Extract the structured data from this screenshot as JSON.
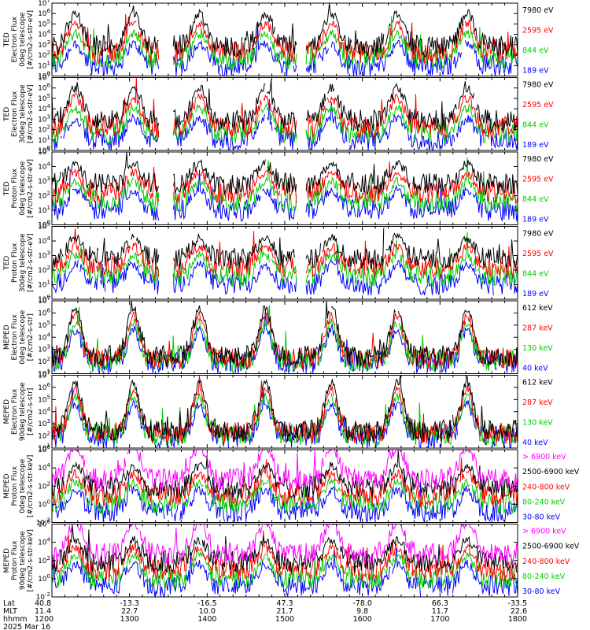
{
  "chart_data": {
    "type": "line",
    "title": "",
    "date": "2025 Mar 16",
    "x_axis": {
      "rows": [
        {
          "name": "Lat",
          "values": [
            "40.8",
            "-13.3",
            "-16.5",
            "47.3",
            "-78.0",
            "66.3",
            "-33.5"
          ]
        },
        {
          "name": "MLT",
          "values": [
            "11.4",
            "22.7",
            "10.0",
            "21.7",
            "9.8",
            "11.7",
            "22.6"
          ]
        },
        {
          "name": "hhmm",
          "values": [
            "1200",
            "1300",
            "1400",
            "1500",
            "1600",
            "1700",
            "1800"
          ]
        }
      ],
      "range_hours": [
        12,
        18
      ]
    },
    "panels": [
      {
        "id": "ted-electron-0deg",
        "ylabel": [
          "TED",
          "Electron Flux",
          "0deg telescope",
          "[#/cm2-s-str-eV]"
        ],
        "yscale": "log",
        "ylim_exp": [
          0,
          7
        ],
        "tick_labels": [
          "10^0",
          "10^1",
          "10^2",
          "10^3",
          "10^4",
          "10^5",
          "10^6",
          "10^7"
        ],
        "series": [
          {
            "name": "7980 eV",
            "color": "#000000"
          },
          {
            "name": "2595 eV",
            "color": "#ff0000"
          },
          {
            "name": "844 eV",
            "color": "#00cc00"
          },
          {
            "name": "189 eV",
            "color": "#0000ff"
          }
        ]
      },
      {
        "id": "ted-electron-30deg",
        "ylabel": [
          "TED",
          "Electron Flux",
          "30deg telescope",
          "[#/cm2-s-str-eV]"
        ],
        "yscale": "log",
        "ylim_exp": [
          0,
          7
        ],
        "tick_labels": [
          "10^0",
          "10^1",
          "10^2",
          "10^3",
          "10^4",
          "10^5",
          "10^6",
          "10^7"
        ],
        "series": [
          {
            "name": "7980 eV",
            "color": "#000000"
          },
          {
            "name": "2595 eV",
            "color": "#ff0000"
          },
          {
            "name": "844 eV",
            "color": "#00cc00"
          },
          {
            "name": "189 eV",
            "color": "#0000ff"
          }
        ]
      },
      {
        "id": "ted-proton-0deg",
        "ylabel": [
          "TED",
          "Proton Flux",
          "0deg telescope",
          "[#/cm2-s-str-eV]"
        ],
        "yscale": "log",
        "ylim_exp": [
          0,
          5
        ],
        "tick_labels": [
          "10^0",
          "10^1",
          "10^2",
          "10^3",
          "10^4",
          "10^5"
        ],
        "series": [
          {
            "name": "7980 eV",
            "color": "#000000"
          },
          {
            "name": "2595 eV",
            "color": "#ff0000"
          },
          {
            "name": "844 eV",
            "color": "#00cc00"
          },
          {
            "name": "189 eV",
            "color": "#0000ff"
          }
        ]
      },
      {
        "id": "ted-proton-30deg",
        "ylabel": [
          "TED",
          "Proton Flux",
          "30deg telescope",
          "[#/cm2-s-str-eV]"
        ],
        "yscale": "log",
        "ylim_exp": [
          0,
          5
        ],
        "tick_labels": [
          "10^0",
          "10^1",
          "10^2",
          "10^3",
          "10^4",
          "10^5"
        ],
        "series": [
          {
            "name": "7980 eV",
            "color": "#000000"
          },
          {
            "name": "2595 eV",
            "color": "#ff0000"
          },
          {
            "name": "844 eV",
            "color": "#00cc00"
          },
          {
            "name": "189 eV",
            "color": "#0000ff"
          }
        ]
      },
      {
        "id": "meped-electron-0deg",
        "ylabel": [
          "MEPED",
          "Electron Flux",
          "0deg telescope",
          "[#/cm2-s-str]"
        ],
        "yscale": "log",
        "ylim_exp": [
          1,
          7
        ],
        "tick_labels": [
          "10^1",
          "10^2",
          "10^3",
          "10^4",
          "10^5",
          "10^6",
          "10^7"
        ],
        "series": [
          {
            "name": "612 keV",
            "color": "#000000"
          },
          {
            "name": "287 keV",
            "color": "#ff0000"
          },
          {
            "name": "130 keV",
            "color": "#00cc00"
          },
          {
            "name": "40 keV",
            "color": "#0000ff"
          }
        ]
      },
      {
        "id": "meped-electron-90deg",
        "ylabel": [
          "MEPED",
          "Electron Flux",
          "90deg telescope",
          "[#/cm2-s-str]"
        ],
        "yscale": "log",
        "ylim_exp": [
          1,
          7
        ],
        "tick_labels": [
          "10^1",
          "10^2",
          "10^3",
          "10^4",
          "10^5",
          "10^6",
          "10^7"
        ],
        "series": [
          {
            "name": "612 keV",
            "color": "#000000"
          },
          {
            "name": "287 keV",
            "color": "#ff0000"
          },
          {
            "name": "130 keV",
            "color": "#00cc00"
          },
          {
            "name": "40 keV",
            "color": "#0000ff"
          }
        ]
      },
      {
        "id": "meped-proton-0deg",
        "ylabel": [
          "MEPED",
          "Proton Flux",
          "0deg telescope",
          "[#/cm2-s-str-keV]"
        ],
        "yscale": "log",
        "ylim_exp": [
          -2,
          6
        ],
        "tick_labels": [
          "10^-2",
          "10^0",
          "10^2",
          "10^4",
          "10^6"
        ],
        "series": [
          {
            "name": "> 6900 keV",
            "color": "#ff00ff"
          },
          {
            "name": "2500-6900 keV",
            "color": "#000000"
          },
          {
            "name": "240-800 keV",
            "color": "#ff0000"
          },
          {
            "name": "80-240 keV",
            "color": "#00cc00"
          },
          {
            "name": "30-80 keV",
            "color": "#0000ff"
          }
        ]
      },
      {
        "id": "meped-proton-90deg",
        "ylabel": [
          "MEPED",
          "Proton Flux",
          "90deg telescope",
          "[#/cm2-s-str-keV]"
        ],
        "yscale": "log",
        "ylim_exp": [
          -2,
          6
        ],
        "tick_labels": [
          "10^-2",
          "10^0",
          "10^2",
          "10^4",
          "10^6"
        ],
        "series": [
          {
            "name": "> 6900 keV",
            "color": "#ff00ff"
          },
          {
            "name": "2500-6900 keV",
            "color": "#000000"
          },
          {
            "name": "240-800 keV",
            "color": "#ff0000"
          },
          {
            "name": "80-240 keV",
            "color": "#00cc00"
          },
          {
            "name": "30-80 keV",
            "color": "#0000ff"
          }
        ]
      }
    ],
    "pass_peaks_hours": [
      12.3,
      13.05,
      13.9,
      14.75,
      15.6,
      16.45,
      17.35
    ]
  }
}
